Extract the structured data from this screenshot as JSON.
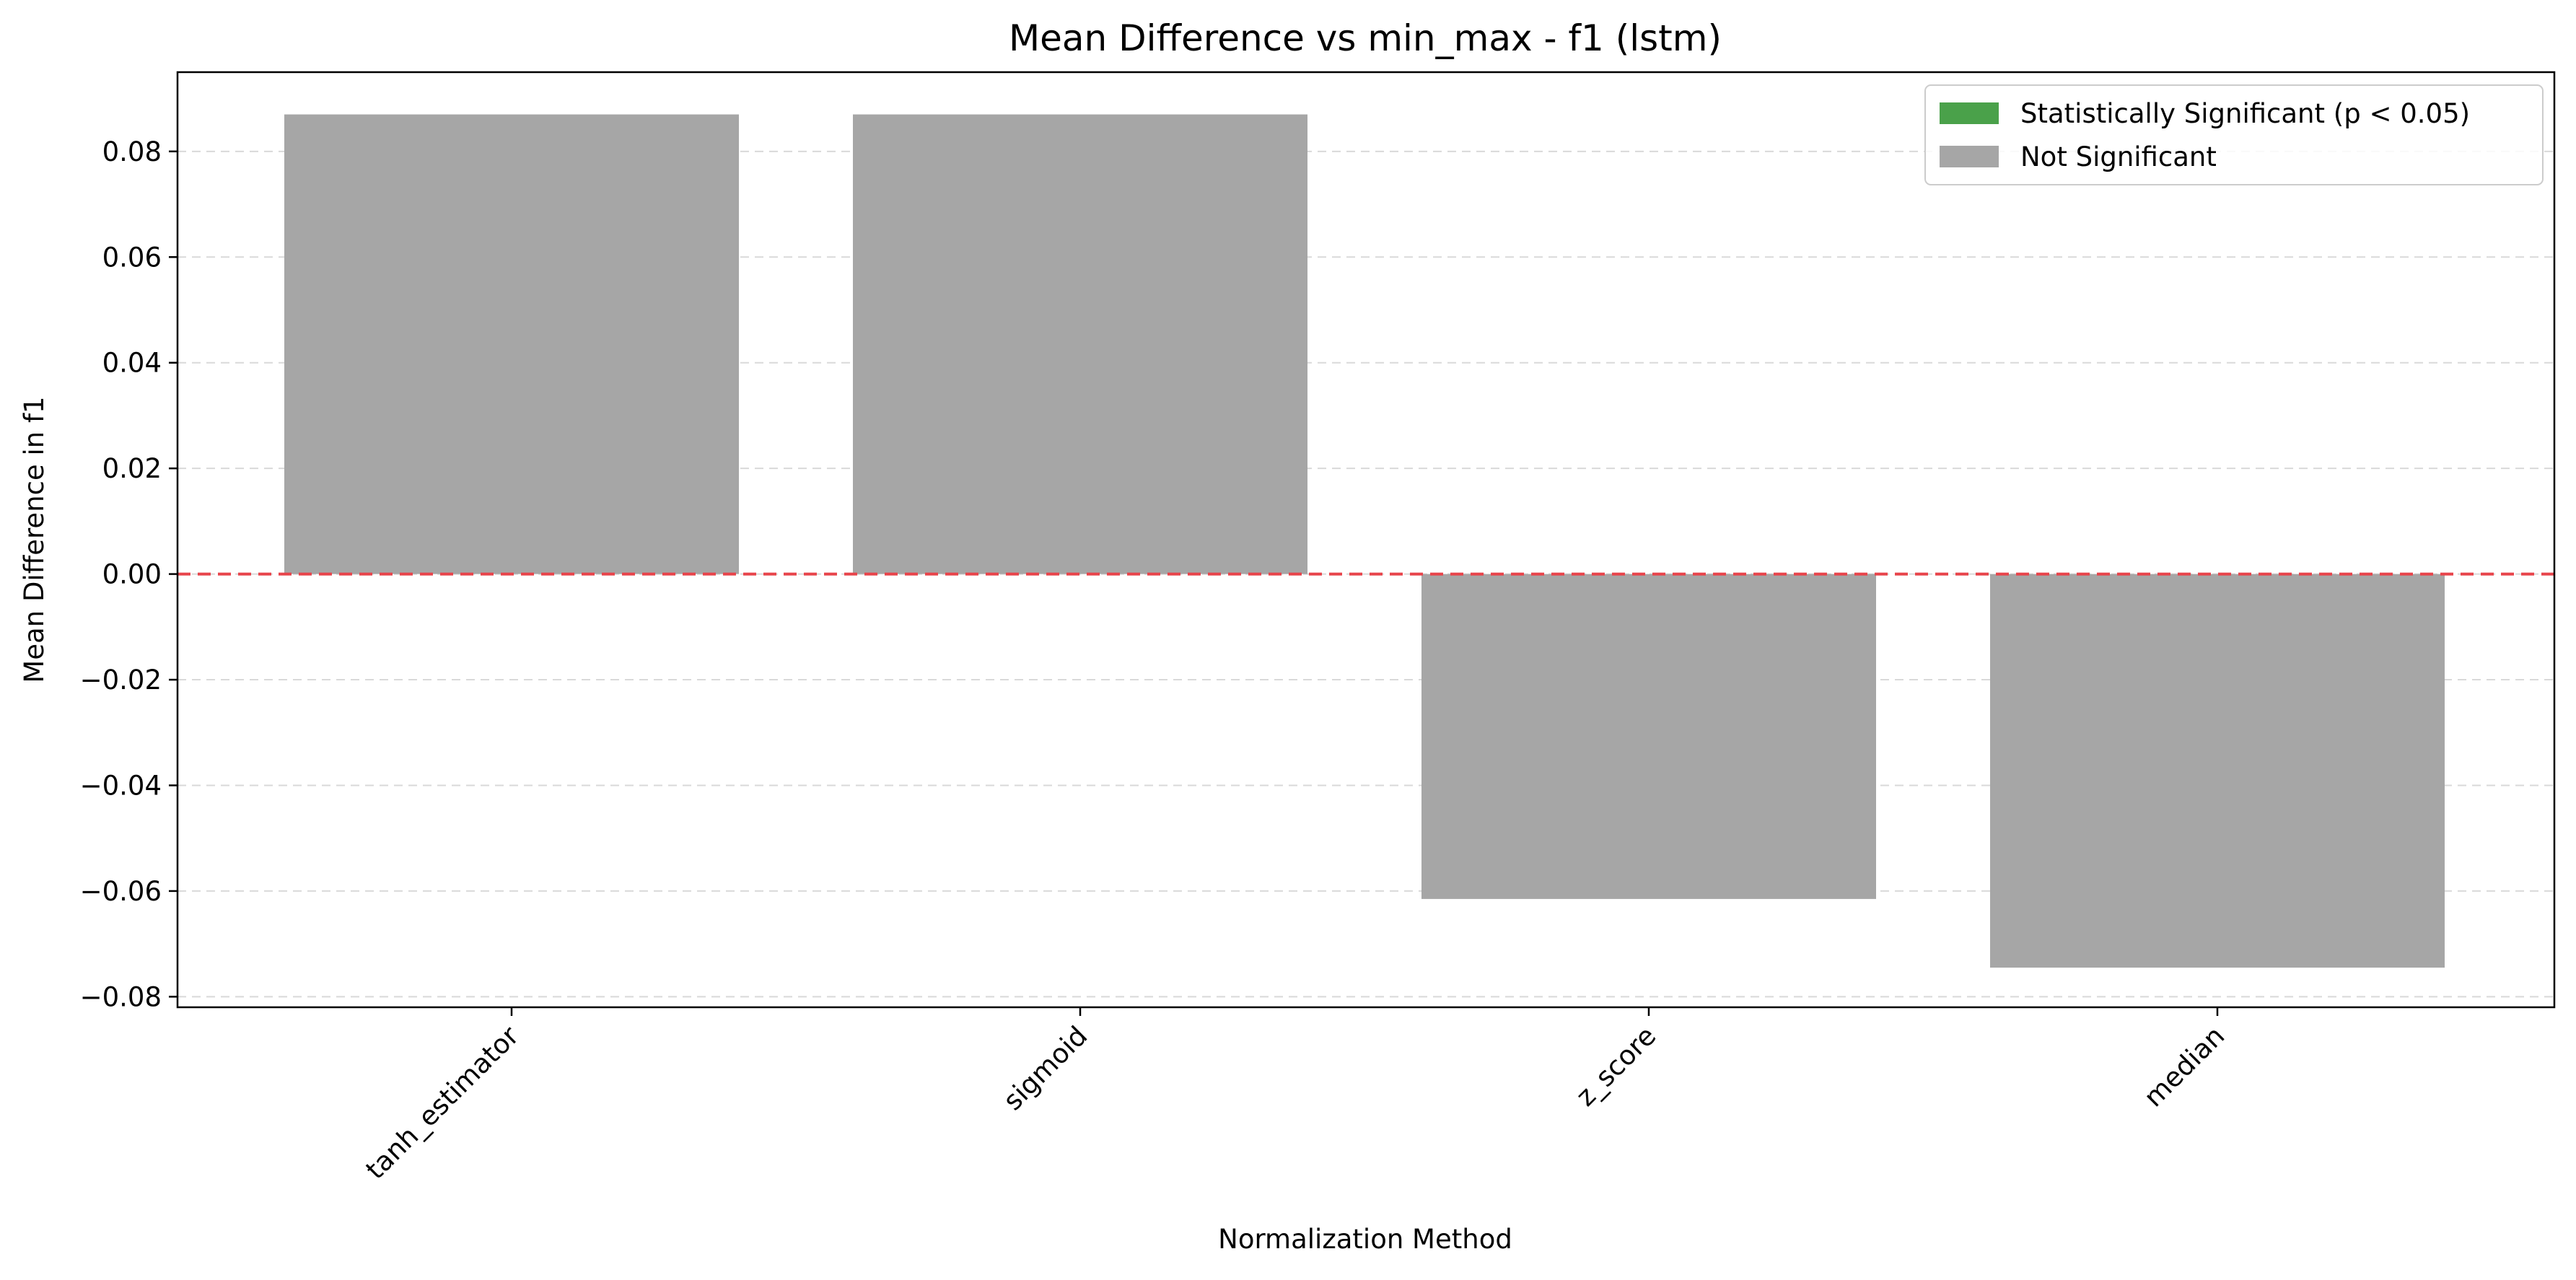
{
  "chart_data": {
    "type": "bar",
    "title": "Mean Difference vs min_max - f1 (lstm)",
    "xlabel": "Normalization Method",
    "ylabel": "Mean Difference in f1",
    "categories": [
      "tanh_estimator",
      "sigmoid",
      "z_score",
      "median"
    ],
    "values": [
      0.087,
      0.087,
      -0.0615,
      -0.0745
    ],
    "significant": [
      false,
      false,
      false,
      false
    ],
    "ylim": [
      -0.082,
      0.095
    ],
    "yticks": [
      -0.08,
      -0.06,
      -0.04,
      -0.02,
      0.0,
      0.02,
      0.04,
      0.06,
      0.08
    ],
    "ytick_labels": [
      "−0.08",
      "−0.06",
      "−0.04",
      "−0.02",
      "0.00",
      "0.02",
      "0.04",
      "0.06",
      "0.08"
    ],
    "reference_line": {
      "y": 0,
      "color": "#e8434a",
      "style": "dashed"
    },
    "grid": {
      "y": true,
      "x": false,
      "style": "dashed"
    },
    "legend": {
      "placement": "top-right",
      "entries": [
        {
          "label": "Statistically Significant (p < 0.05)",
          "color": "#4aa14a"
        },
        {
          "label": "Not Significant",
          "color": "#a6a6a6"
        }
      ]
    },
    "colors": {
      "significant": "#4aa14a",
      "not_significant": "#a6a6a6"
    }
  }
}
